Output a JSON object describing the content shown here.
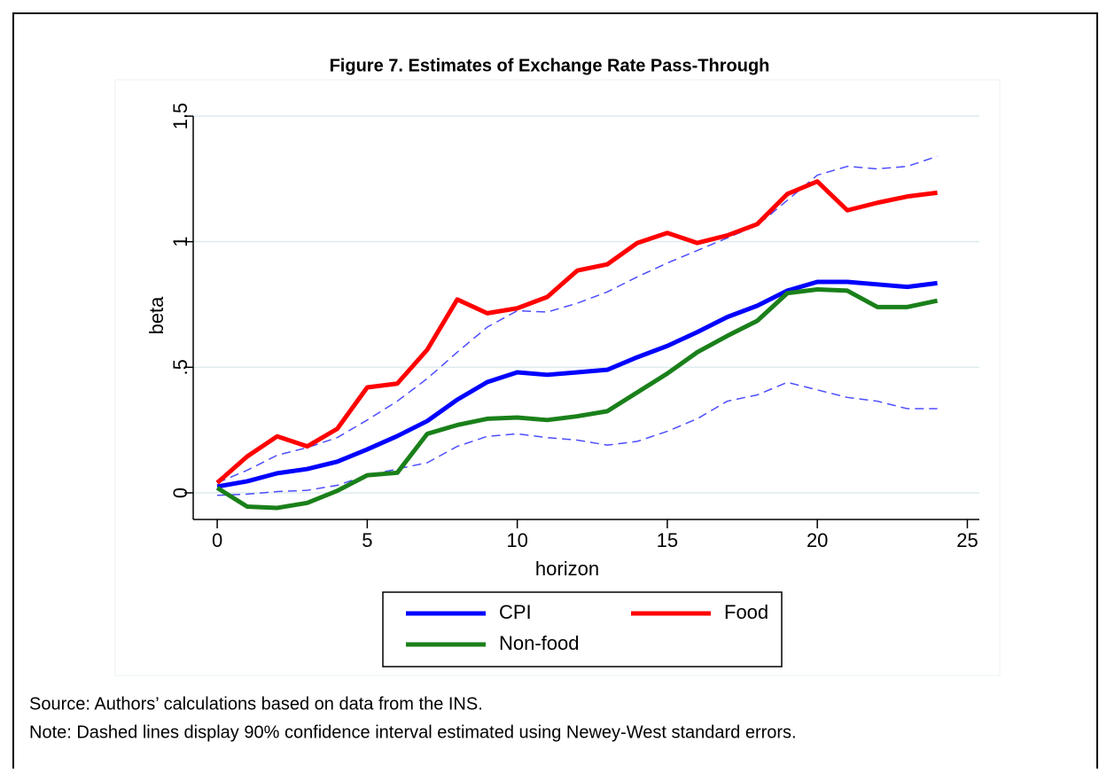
{
  "chart_data": {
    "type": "line",
    "title": "Figure 7. Estimates of Exchange Rate Pass-Through",
    "x_label": "horizon",
    "y_label": "beta",
    "x": [
      0,
      1,
      2,
      3,
      4,
      5,
      6,
      7,
      8,
      9,
      10,
      11,
      12,
      13,
      14,
      15,
      16,
      17,
      18,
      19,
      20,
      21,
      22,
      23,
      24
    ],
    "series": [
      {
        "name": "CPI",
        "color": "#0000ff",
        "values": [
          0.025,
          0.046,
          0.078,
          0.095,
          0.124,
          0.173,
          0.226,
          0.286,
          0.371,
          0.441,
          0.48,
          0.47,
          0.48,
          0.49,
          0.54,
          0.585,
          0.64,
          0.7,
          0.745,
          0.805,
          0.84,
          0.84,
          0.83,
          0.82,
          0.835
        ]
      },
      {
        "name": "Food",
        "color": "#ff0000",
        "values": [
          0.04,
          0.145,
          0.225,
          0.185,
          0.255,
          0.42,
          0.435,
          0.57,
          0.77,
          0.715,
          0.735,
          0.78,
          0.885,
          0.91,
          0.995,
          1.035,
          0.995,
          1.025,
          1.07,
          1.19,
          1.24,
          1.125,
          1.155,
          1.18,
          1.195
        ]
      },
      {
        "name": "Non-food",
        "color": "#1a801a",
        "values": [
          0.02,
          -0.055,
          -0.06,
          -0.04,
          0.008,
          0.07,
          0.08,
          0.235,
          0.27,
          0.295,
          0.3,
          0.29,
          0.305,
          0.325,
          0.4,
          0.475,
          0.56,
          0.625,
          0.685,
          0.795,
          0.81,
          0.805,
          0.74,
          0.74,
          0.765
        ]
      },
      {
        "color": "#4d4dff",
        "dashed": true,
        "values": [
          0.04,
          0.09,
          0.15,
          0.18,
          0.22,
          0.29,
          0.365,
          0.455,
          0.56,
          0.66,
          0.725,
          0.72,
          0.755,
          0.8,
          0.86,
          0.915,
          0.965,
          1.015,
          1.065,
          1.165,
          1.265,
          1.3,
          1.29,
          1.3,
          1.34
        ]
      },
      {
        "color": "#4d4dff",
        "dashed": true,
        "values": [
          -0.01,
          -0.005,
          0.005,
          0.01,
          0.03,
          0.07,
          0.095,
          0.12,
          0.185,
          0.225,
          0.235,
          0.22,
          0.21,
          0.19,
          0.205,
          0.245,
          0.295,
          0.365,
          0.39,
          0.44,
          0.41,
          0.38,
          0.365,
          0.335,
          0.335
        ]
      }
    ],
    "xlim": [
      -0.8,
      25.4
    ],
    "xticks": [
      0,
      5,
      10,
      15,
      20,
      25
    ],
    "ylim": [
      -0.106,
      1.5
    ],
    "yticks": [
      0,
      {
        "value": 0.5,
        "label": ".5"
      },
      1,
      1.5
    ],
    "grid": true,
    "legend": "bottom",
    "source": "Source: Authors’ calculations based on data from the INS.",
    "note": "Note: Dashed lines display 90% confidence interval estimated using Newey-West standard errors."
  }
}
